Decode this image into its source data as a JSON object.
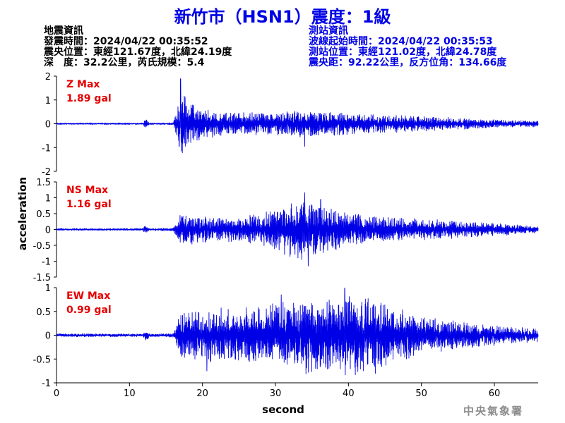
{
  "title": "新竹市（HSN1）震度：1級",
  "earthquake_info": {
    "heading": "地震資訊",
    "origin_time": "發震時間：2024/04/22 00:35:52",
    "epicenter": "震央位置：東經121.67度，北緯24.19度",
    "depth_magnitude": "深　度：32.2公里，芮氏規模：5.4"
  },
  "station_info": {
    "heading": "測站資訊",
    "arrival_time": "波線起始時間：2024/04/22 00:35:53",
    "location": "測站位置：東經121.02度，北緯24.78度",
    "distance_azimuth": "震央距：92.22公里，反方位角：134.66度"
  },
  "agency": "中央氣象署",
  "chart_data": {
    "type": "line",
    "xlabel": "second",
    "ylabel": "acceleration",
    "xlim": [
      0,
      66
    ],
    "xticks": [
      0,
      10,
      20,
      30,
      40,
      50,
      60
    ],
    "x_tick_labels": [
      "0",
      "10",
      "20",
      "30",
      "40",
      "50",
      "60"
    ],
    "line_color": "#0000e6",
    "panels": [
      {
        "component": "Z",
        "label": "Z Max",
        "max_text": "1.89 gal",
        "peak": 1.89,
        "ylim": [
          -2,
          2
        ],
        "yticks": [
          -2,
          -1,
          0,
          1,
          2
        ],
        "y_tick_labels": [
          "-2",
          "-1",
          "0",
          "1",
          "2"
        ],
        "envelope": [
          [
            0,
            0.03
          ],
          [
            11.8,
            0.03
          ],
          [
            12.3,
            0.2
          ],
          [
            12.8,
            0.03
          ],
          [
            16,
            0.04
          ],
          [
            16.5,
            0.6
          ],
          [
            17.3,
            1.3
          ],
          [
            18.5,
            0.8
          ],
          [
            20,
            0.55
          ],
          [
            23,
            0.45
          ],
          [
            28,
            0.45
          ],
          [
            34,
            0.5
          ],
          [
            40,
            0.4
          ],
          [
            50,
            0.3
          ],
          [
            60,
            0.15
          ],
          [
            66,
            0.12
          ]
        ],
        "spikes": [
          [
            17.0,
            1.89
          ],
          [
            16.8,
            -0.95
          ],
          [
            34.0,
            -0.95
          ],
          [
            31.6,
            0.5
          ]
        ]
      },
      {
        "component": "NS",
        "label": "NS Max",
        "max_text": "1.16 gal",
        "peak": 1.16,
        "ylim": [
          -1.5,
          1.5
        ],
        "yticks": [
          -1.5,
          -1,
          -0.5,
          0,
          0.5,
          1,
          1.5
        ],
        "y_tick_labels": [
          "-1.5",
          "-1",
          "-0.5",
          "0",
          "0.5",
          "1",
          "1.5"
        ],
        "envelope": [
          [
            0,
            0.03
          ],
          [
            11.8,
            0.03
          ],
          [
            12.3,
            0.15
          ],
          [
            12.8,
            0.03
          ],
          [
            16,
            0.05
          ],
          [
            17,
            0.45
          ],
          [
            19,
            0.4
          ],
          [
            25,
            0.35
          ],
          [
            30,
            0.6
          ],
          [
            33,
            0.9
          ],
          [
            36,
            0.75
          ],
          [
            40,
            0.5
          ],
          [
            45,
            0.35
          ],
          [
            55,
            0.25
          ],
          [
            66,
            0.1
          ]
        ],
        "spikes": [
          [
            34.0,
            1.16
          ],
          [
            34.5,
            -1.15
          ],
          [
            32.0,
            -0.85
          ],
          [
            36.2,
            0.95
          ]
        ]
      },
      {
        "component": "EW",
        "label": "EW Max",
        "max_text": "0.99 gal",
        "peak": 0.99,
        "ylim": [
          -1,
          1
        ],
        "yticks": [
          -1,
          -0.5,
          0,
          0.5,
          1
        ],
        "y_tick_labels": [
          "-1",
          "-0.5",
          "0",
          "0.5",
          "1"
        ],
        "envelope": [
          [
            0,
            0.03
          ],
          [
            11.8,
            0.03
          ],
          [
            12.3,
            0.1
          ],
          [
            12.8,
            0.03
          ],
          [
            16,
            0.04
          ],
          [
            17,
            0.45
          ],
          [
            20,
            0.5
          ],
          [
            25,
            0.5
          ],
          [
            30,
            0.65
          ],
          [
            35,
            0.75
          ],
          [
            40,
            0.75
          ],
          [
            44,
            0.7
          ],
          [
            50,
            0.35
          ],
          [
            58,
            0.22
          ],
          [
            66,
            0.12
          ]
        ],
        "spikes": [
          [
            39.5,
            0.99
          ],
          [
            43.7,
            -0.8
          ],
          [
            20.6,
            -0.75
          ],
          [
            30.8,
            0.85
          ]
        ]
      }
    ]
  }
}
